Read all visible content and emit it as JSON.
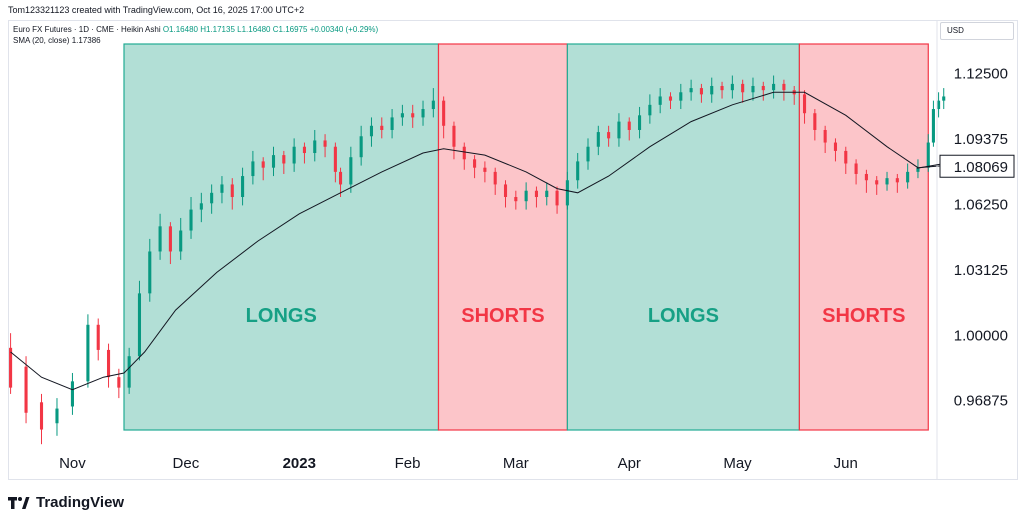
{
  "header": {
    "created_by": "Tom123321123 created with TradingView.com, Oct 16, 2025 17:00 UTC+2"
  },
  "legend": {
    "symbol": "Euro FX Futures · 1D · CME · Heikin Ashi",
    "open": "O1.16480",
    "high": "H1.17135",
    "low": "L1.16480",
    "close": "C1.16975",
    "change": "+0.00340 (+0.29%)",
    "indicator": "SMA (20, close)",
    "indicator_value": "1.17386"
  },
  "currency": "USD",
  "branding": {
    "name": "TradingView",
    "logo_icon": "tradingview-logo-icon"
  },
  "colors": {
    "up": "#089981",
    "down": "#f23645",
    "long_zone": "#b2dfd6",
    "short_zone": "#fcc5c9",
    "sma": "#131722"
  },
  "chart_data": {
    "type": "candlestick",
    "style": "Heikin Ashi",
    "price_axis": {
      "ticks": [
        "1.12500",
        "1.09375",
        "1.06250",
        "1.03125",
        "1.00000",
        "0.96875"
      ],
      "tick_values": [
        1.125,
        1.09375,
        1.0625,
        1.03125,
        1.0,
        0.96875
      ],
      "range": [
        0.95,
        1.14
      ],
      "current_price_label": "1.08069",
      "current_price": 1.08069
    },
    "time_axis": {
      "ticks": [
        "Nov",
        "Dec",
        "2023",
        "Feb",
        "Mar",
        "Apr",
        "May",
        "Jun"
      ],
      "tick_index": [
        12,
        34,
        56,
        77,
        98,
        120,
        141,
        162
      ],
      "bold_ticks": [
        "2023"
      ],
      "bar_count": 180
    },
    "zones": [
      {
        "label": "LONGS",
        "kind": "long",
        "start": 22,
        "end": 83
      },
      {
        "label": "SHORTS",
        "kind": "short",
        "start": 83,
        "end": 108
      },
      {
        "label": "LONGS",
        "kind": "long",
        "start": 108,
        "end": 153
      },
      {
        "label": "SHORTS",
        "kind": "short",
        "start": 153,
        "end": 178
      }
    ],
    "candles": [
      [
        0,
        0.994,
        0.975,
        1.001,
        0.972
      ],
      [
        3,
        0.985,
        0.963,
        0.99,
        0.958
      ],
      [
        6,
        0.968,
        0.955,
        0.972,
        0.948
      ],
      [
        9,
        0.958,
        0.965,
        0.97,
        0.952
      ],
      [
        12,
        0.966,
        0.978,
        0.982,
        0.962
      ],
      [
        15,
        0.978,
        1.005,
        1.01,
        0.975
      ],
      [
        17,
        1.005,
        0.993,
        1.008,
        0.988
      ],
      [
        19,
        0.993,
        0.98,
        0.996,
        0.975
      ],
      [
        21,
        0.98,
        0.975,
        0.984,
        0.97
      ],
      [
        23,
        0.975,
        0.99,
        0.994,
        0.972
      ],
      [
        25,
        0.99,
        1.02,
        1.026,
        0.988
      ],
      [
        27,
        1.02,
        1.04,
        1.046,
        1.016
      ],
      [
        29,
        1.04,
        1.052,
        1.058,
        1.036
      ],
      [
        31,
        1.052,
        1.04,
        1.054,
        1.034
      ],
      [
        33,
        1.04,
        1.05,
        1.056,
        1.036
      ],
      [
        35,
        1.05,
        1.06,
        1.066,
        1.046
      ],
      [
        37,
        1.06,
        1.063,
        1.068,
        1.054
      ],
      [
        39,
        1.063,
        1.068,
        1.072,
        1.058
      ],
      [
        41,
        1.068,
        1.072,
        1.076,
        1.063
      ],
      [
        43,
        1.072,
        1.066,
        1.075,
        1.06
      ],
      [
        45,
        1.066,
        1.076,
        1.08,
        1.062
      ],
      [
        47,
        1.076,
        1.083,
        1.088,
        1.072
      ],
      [
        49,
        1.083,
        1.08,
        1.085,
        1.074
      ],
      [
        51,
        1.08,
        1.086,
        1.09,
        1.076
      ],
      [
        53,
        1.086,
        1.082,
        1.088,
        1.077
      ],
      [
        55,
        1.082,
        1.09,
        1.094,
        1.078
      ],
      [
        57,
        1.09,
        1.087,
        1.092,
        1.082
      ],
      [
        59,
        1.087,
        1.093,
        1.098,
        1.083
      ],
      [
        61,
        1.093,
        1.09,
        1.096,
        1.085
      ],
      [
        63,
        1.09,
        1.078,
        1.092,
        1.073
      ],
      [
        64,
        1.078,
        1.072,
        1.08,
        1.066
      ],
      [
        66,
        1.072,
        1.085,
        1.09,
        1.068
      ],
      [
        68,
        1.085,
        1.095,
        1.1,
        1.081
      ],
      [
        70,
        1.095,
        1.1,
        1.104,
        1.09
      ],
      [
        72,
        1.1,
        1.098,
        1.104,
        1.094
      ],
      [
        74,
        1.098,
        1.104,
        1.108,
        1.094
      ],
      [
        76,
        1.104,
        1.106,
        1.11,
        1.1
      ],
      [
        78,
        1.106,
        1.104,
        1.11,
        1.099
      ],
      [
        80,
        1.104,
        1.108,
        1.112,
        1.1
      ],
      [
        82,
        1.108,
        1.112,
        1.118,
        1.104
      ],
      [
        84,
        1.112,
        1.1,
        1.114,
        1.094
      ],
      [
        86,
        1.1,
        1.09,
        1.102,
        1.084
      ],
      [
        88,
        1.09,
        1.084,
        1.092,
        1.079
      ],
      [
        90,
        1.084,
        1.08,
        1.086,
        1.075
      ],
      [
        92,
        1.08,
        1.078,
        1.083,
        1.073
      ],
      [
        94,
        1.078,
        1.072,
        1.08,
        1.067
      ],
      [
        96,
        1.072,
        1.066,
        1.074,
        1.061
      ],
      [
        98,
        1.066,
        1.064,
        1.069,
        1.06
      ],
      [
        100,
        1.064,
        1.069,
        1.073,
        1.06
      ],
      [
        102,
        1.069,
        1.066,
        1.071,
        1.061
      ],
      [
        104,
        1.066,
        1.069,
        1.073,
        1.062
      ],
      [
        106,
        1.069,
        1.062,
        1.071,
        1.058
      ],
      [
        108,
        1.062,
        1.074,
        1.078,
        1.06
      ],
      [
        110,
        1.074,
        1.083,
        1.087,
        1.07
      ],
      [
        112,
        1.083,
        1.09,
        1.094,
        1.079
      ],
      [
        114,
        1.09,
        1.097,
        1.1,
        1.086
      ],
      [
        116,
        1.097,
        1.094,
        1.1,
        1.09
      ],
      [
        118,
        1.094,
        1.102,
        1.106,
        1.09
      ],
      [
        120,
        1.102,
        1.098,
        1.104,
        1.093
      ],
      [
        122,
        1.098,
        1.105,
        1.109,
        1.094
      ],
      [
        124,
        1.105,
        1.11,
        1.115,
        1.101
      ],
      [
        126,
        1.11,
        1.114,
        1.118,
        1.106
      ],
      [
        128,
        1.114,
        1.112,
        1.116,
        1.108
      ],
      [
        130,
        1.112,
        1.116,
        1.12,
        1.108
      ],
      [
        132,
        1.116,
        1.118,
        1.122,
        1.112
      ],
      [
        134,
        1.118,
        1.115,
        1.12,
        1.111
      ],
      [
        136,
        1.115,
        1.119,
        1.123,
        1.111
      ],
      [
        138,
        1.119,
        1.117,
        1.121,
        1.113
      ],
      [
        140,
        1.117,
        1.12,
        1.124,
        1.113
      ],
      [
        142,
        1.12,
        1.116,
        1.122,
        1.111
      ],
      [
        144,
        1.116,
        1.119,
        1.123,
        1.112
      ],
      [
        146,
        1.119,
        1.117,
        1.121,
        1.112
      ],
      [
        148,
        1.117,
        1.12,
        1.124,
        1.113
      ],
      [
        150,
        1.12,
        1.117,
        1.122,
        1.112
      ],
      [
        152,
        1.117,
        1.115,
        1.119,
        1.11
      ],
      [
        154,
        1.115,
        1.106,
        1.117,
        1.101
      ],
      [
        156,
        1.106,
        1.098,
        1.108,
        1.093
      ],
      [
        158,
        1.098,
        1.092,
        1.1,
        1.087
      ],
      [
        160,
        1.092,
        1.088,
        1.094,
        1.083
      ],
      [
        162,
        1.088,
        1.082,
        1.09,
        1.077
      ],
      [
        164,
        1.082,
        1.077,
        1.084,
        1.072
      ],
      [
        166,
        1.077,
        1.074,
        1.079,
        1.068
      ],
      [
        168,
        1.074,
        1.072,
        1.076,
        1.067
      ],
      [
        170,
        1.072,
        1.075,
        1.078,
        1.069
      ],
      [
        172,
        1.075,
        1.073,
        1.077,
        1.068
      ],
      [
        174,
        1.073,
        1.078,
        1.082,
        1.07
      ],
      [
        176,
        1.078,
        1.08,
        1.084,
        1.075
      ],
      [
        178,
        1.08,
        1.092,
        1.096,
        1.078
      ],
      [
        179,
        1.092,
        1.108,
        1.112,
        1.09
      ],
      [
        180,
        1.108,
        1.112,
        1.116,
        1.104
      ],
      [
        181,
        1.112,
        1.114,
        1.118,
        1.108
      ]
    ],
    "sma": [
      [
        0,
        0.992
      ],
      [
        6,
        0.98
      ],
      [
        12,
        0.974
      ],
      [
        18,
        0.98
      ],
      [
        22,
        0.982
      ],
      [
        26,
        0.992
      ],
      [
        32,
        1.012
      ],
      [
        40,
        1.03
      ],
      [
        48,
        1.045
      ],
      [
        56,
        1.058
      ],
      [
        64,
        1.068
      ],
      [
        72,
        1.078
      ],
      [
        80,
        1.087
      ],
      [
        84,
        1.089
      ],
      [
        92,
        1.086
      ],
      [
        100,
        1.078
      ],
      [
        106,
        1.07
      ],
      [
        110,
        1.068
      ],
      [
        116,
        1.076
      ],
      [
        124,
        1.09
      ],
      [
        132,
        1.102
      ],
      [
        140,
        1.11
      ],
      [
        148,
        1.116
      ],
      [
        154,
        1.116
      ],
      [
        162,
        1.105
      ],
      [
        170,
        1.09
      ],
      [
        176,
        1.08
      ],
      [
        181,
        1.081
      ]
    ]
  }
}
